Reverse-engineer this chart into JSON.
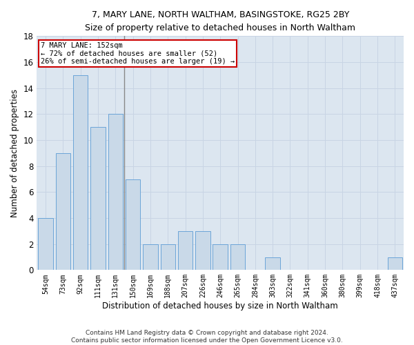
{
  "title1": "7, MARY LANE, NORTH WALTHAM, BASINGSTOKE, RG25 2BY",
  "title2": "Size of property relative to detached houses in North Waltham",
  "xlabel": "Distribution of detached houses by size in North Waltham",
  "ylabel": "Number of detached properties",
  "categories": [
    "54sqm",
    "73sqm",
    "92sqm",
    "111sqm",
    "131sqm",
    "150sqm",
    "169sqm",
    "188sqm",
    "207sqm",
    "226sqm",
    "246sqm",
    "265sqm",
    "284sqm",
    "303sqm",
    "322sqm",
    "341sqm",
    "360sqm",
    "380sqm",
    "399sqm",
    "418sqm",
    "437sqm"
  ],
  "values": [
    4,
    9,
    15,
    11,
    12,
    7,
    2,
    2,
    3,
    3,
    2,
    2,
    0,
    1,
    0,
    0,
    0,
    0,
    0,
    0,
    1
  ],
  "bar_color": "#c9d9e8",
  "bar_edge_color": "#5b9bd5",
  "highlight_index": 4,
  "highlight_line_color": "#888888",
  "annotation_line1": "7 MARY LANE: 152sqm",
  "annotation_line2": "← 72% of detached houses are smaller (52)",
  "annotation_line3": "26% of semi-detached houses are larger (19) →",
  "annotation_box_color": "#ffffff",
  "annotation_box_edge": "#cc0000",
  "grid_color": "#c8d4e4",
  "background_color": "#dce6f0",
  "footer": "Contains HM Land Registry data © Crown copyright and database right 2024.\nContains public sector information licensed under the Open Government Licence v3.0.",
  "ylim": [
    0,
    18
  ],
  "yticks": [
    0,
    2,
    4,
    6,
    8,
    10,
    12,
    14,
    16,
    18
  ]
}
